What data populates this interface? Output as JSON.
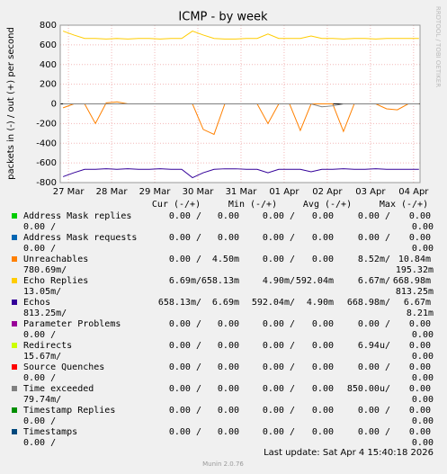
{
  "chart_data": {
    "type": "line",
    "title": "ICMP - by week",
    "y_label": "packets in (-) / out (+) per second",
    "side_text": "RRDTOOL / TOBI OETIKER",
    "xlim": [
      -0.19,
      8.15
    ],
    "xticks": [
      {
        "value": 0,
        "label": "27 Mar"
      },
      {
        "value": 1,
        "label": "28 Mar"
      },
      {
        "value": 2,
        "label": "29 Mar"
      },
      {
        "value": 3,
        "label": "30 Mar"
      },
      {
        "value": 4,
        "label": "31 Mar"
      },
      {
        "value": 5,
        "label": "01 Apr"
      },
      {
        "value": 6,
        "label": "02 Apr"
      },
      {
        "value": 7,
        "label": "03 Apr"
      },
      {
        "value": 8,
        "label": "04 Apr"
      }
    ],
    "ylim": [
      -800,
      800
    ],
    "yticks": [
      800,
      600,
      400,
      200,
      0,
      -200,
      -400,
      -600,
      -800
    ],
    "grid": true,
    "x": [
      -0.125,
      0.125,
      0.375,
      0.625,
      0.875,
      1.125,
      1.375,
      1.625,
      1.875,
      2.125,
      2.375,
      2.625,
      2.875,
      3.125,
      3.375,
      3.625,
      3.875,
      4.125,
      4.375,
      4.625,
      4.875,
      5.125,
      5.375,
      5.625,
      5.875,
      6.125,
      6.375,
      6.625,
      6.875,
      7.125,
      7.375,
      7.625,
      7.875,
      8.125
    ],
    "stats_header": [
      "Cur (-/+)",
      "Min (-/+)",
      "Avg (-/+)",
      "Max (-/+)"
    ],
    "series": [
      {
        "name": "Address Mask replies",
        "color": "#00cc00",
        "stats": [
          "0.00 /",
          "0.00",
          "0.00 /",
          "0.00",
          "0.00 /",
          "0.00",
          "0.00 /",
          "0.00"
        ]
      },
      {
        "name": "Address Mask requests",
        "color": "#0066b3",
        "stats": [
          "0.00 /",
          "0.00",
          "0.00 /",
          "0.00",
          "0.00 /",
          "0.00",
          "0.00 /",
          "0.00"
        ]
      },
      {
        "name": "Unreachables",
        "color": "#ff8000",
        "stats": [
          "0.00 /",
          "4.50m",
          "0.00 /",
          "0.00",
          "8.52m/",
          "10.84m",
          "780.69m/",
          "195.32m"
        ],
        "values": [
          -40,
          0,
          0,
          -200,
          10,
          20,
          0,
          0,
          0,
          0,
          0,
          0,
          0,
          -260,
          -310,
          0,
          0,
          0,
          0,
          -200,
          0,
          0,
          -270,
          0,
          0,
          0,
          -280,
          0,
          0,
          0,
          -50,
          -60,
          0,
          0
        ]
      },
      {
        "name": "Echo Replies",
        "color": "#ffcc00",
        "stats": [
          "6.69m/",
          "658.13m",
          "4.90m/",
          "592.04m",
          "6.67m/",
          "668.98m",
          "13.05m/",
          "813.25m"
        ],
        "values": [
          740,
          700,
          665,
          665,
          660,
          665,
          660,
          665,
          665,
          660,
          665,
          665,
          740,
          700,
          665,
          660,
          660,
          665,
          665,
          710,
          665,
          665,
          665,
          690,
          665,
          665,
          660,
          665,
          665,
          660,
          665,
          665,
          665,
          665
        ]
      },
      {
        "name": "Echos",
        "color": "#330099",
        "stats": [
          "658.13m/",
          "6.69m",
          "592.04m/",
          "4.90m",
          "668.98m/",
          "6.67m",
          "813.25m/",
          "8.21m"
        ],
        "values": [
          -740,
          -700,
          -665,
          -665,
          -660,
          -665,
          -660,
          -665,
          -665,
          -660,
          -665,
          -665,
          -750,
          -700,
          -665,
          -660,
          -660,
          -665,
          -665,
          -700,
          -665,
          -665,
          -665,
          -690,
          -665,
          -665,
          -660,
          -665,
          -665,
          -660,
          -665,
          -665,
          -665,
          -665
        ]
      },
      {
        "name": "Parameter Problems",
        "color": "#990099",
        "stats": [
          "0.00 /",
          "0.00",
          "0.00 /",
          "0.00",
          "0.00 /",
          "0.00",
          "0.00 /",
          "0.00"
        ]
      },
      {
        "name": "Redirects",
        "color": "#ccff00",
        "stats": [
          "0.00 /",
          "0.00",
          "0.00 /",
          "0.00",
          "6.94u/",
          "0.00",
          "15.67m/",
          "0.00"
        ]
      },
      {
        "name": "Source Quenches",
        "color": "#ff0000",
        "stats": [
          "0.00 /",
          "0.00",
          "0.00 /",
          "0.00",
          "0.00 /",
          "0.00",
          "0.00 /",
          "0.00"
        ]
      },
      {
        "name": "Time exceeded",
        "color": "#808080",
        "stats": [
          "0.00 /",
          "0.00",
          "0.00 /",
          "0.00",
          "850.00u/",
          "0.00",
          "79.74m/",
          "0.00"
        ],
        "values": [
          0,
          0,
          0,
          0,
          0,
          0,
          0,
          0,
          0,
          0,
          0,
          0,
          0,
          0,
          0,
          0,
          0,
          0,
          0,
          0,
          0,
          0,
          0,
          0,
          -30,
          -20,
          0,
          0,
          0,
          0,
          0,
          0,
          0,
          0
        ]
      },
      {
        "name": "Timestamp Replies",
        "color": "#008f00",
        "stats": [
          "0.00 /",
          "0.00",
          "0.00 /",
          "0.00",
          "0.00 /",
          "0.00",
          "0.00 /",
          "0.00"
        ]
      },
      {
        "name": "Timestamps",
        "color": "#00487d",
        "stats": [
          "0.00 /",
          "0.00",
          "0.00 /",
          "0.00",
          "0.00 /",
          "0.00",
          "0.00 /",
          "0.00"
        ]
      }
    ],
    "last_update": "Last update: Sat Apr  4 15:40:18 2026",
    "footer": "Munin 2.0.76"
  }
}
